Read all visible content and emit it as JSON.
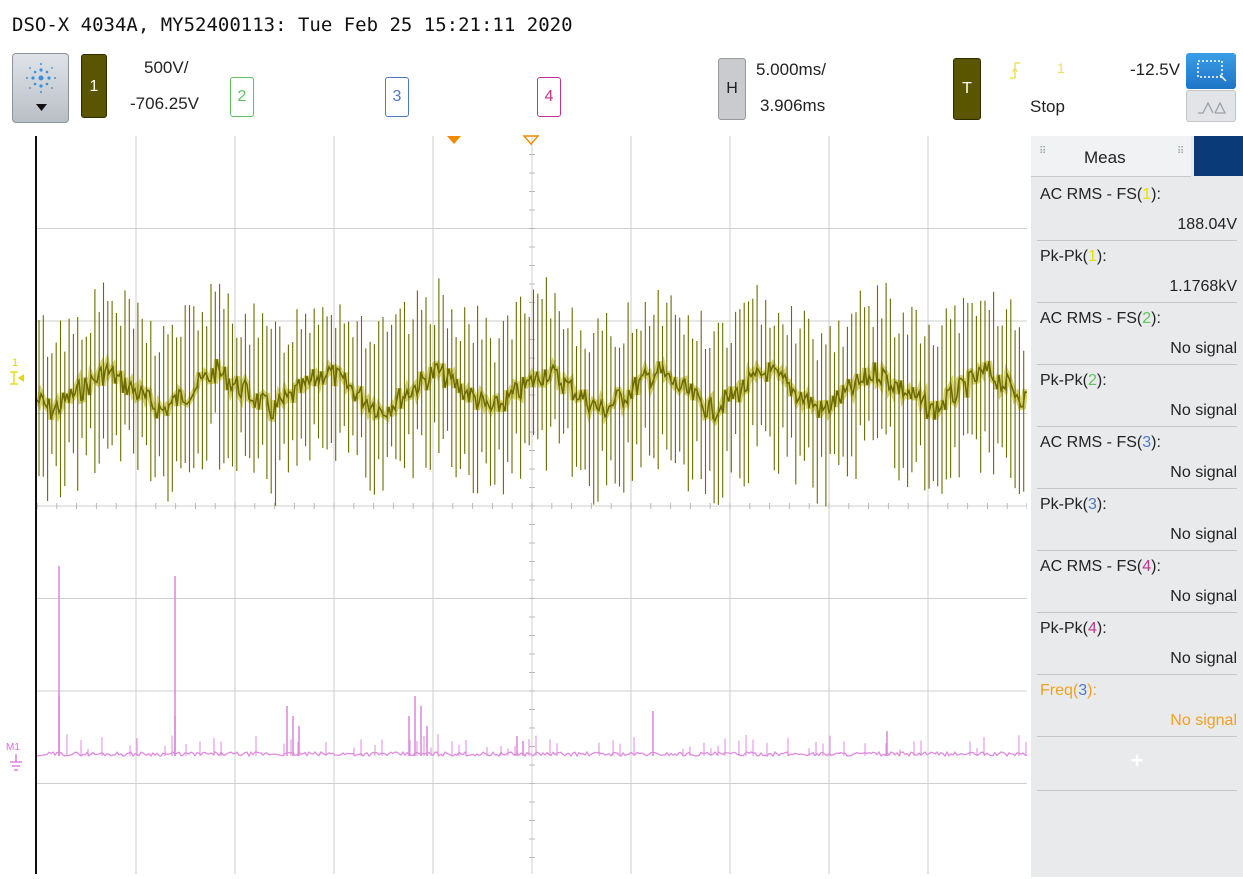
{
  "header": {
    "title": "DSO-X 4034A, MY52400113: Tue Feb 25 15:21:11 2020"
  },
  "toolbar": {
    "ch1": {
      "label": "1",
      "scale": "500V/",
      "offset": "-706.25V",
      "color": "#5a5500"
    },
    "ch2": {
      "label": "2",
      "color": "#5fc35f"
    },
    "ch3": {
      "label": "3",
      "color": "#4f78c8"
    },
    "ch4": {
      "label": "4",
      "color": "#c0328f"
    },
    "horizontal": {
      "label": "H",
      "scale": "5.000ms/",
      "delay": "3.906ms"
    },
    "trigger": {
      "label": "T",
      "source": "1",
      "level": "-12.5V",
      "mode": "Stop",
      "color": "#5a5500"
    }
  },
  "traces": {
    "ch1_color": "#6b6b00",
    "ch1_light": "#b8b000",
    "math_label": "M1",
    "math_color": "#e08ae0",
    "ch1_marker": "1"
  },
  "meas": {
    "title": "Meas",
    "items": [
      {
        "label": "AC RMS - FS(",
        "src": "1",
        "src_color": "#e8e000",
        "value": "188.04V",
        "highlight": false
      },
      {
        "label": "Pk-Pk(",
        "src": "1",
        "src_color": "#e8e000",
        "value": "1.1768kV",
        "highlight": false
      },
      {
        "label": "AC RMS - FS(",
        "src": "2",
        "src_color": "#5fc35f",
        "value": "No signal",
        "highlight": false
      },
      {
        "label": "Pk-Pk(",
        "src": "2",
        "src_color": "#5fc35f",
        "value": "No signal",
        "highlight": false
      },
      {
        "label": "AC RMS - FS(",
        "src": "3",
        "src_color": "#4f78c8",
        "value": "No signal",
        "highlight": false
      },
      {
        "label": "Pk-Pk(",
        "src": "3",
        "src_color": "#4f78c8",
        "value": "No signal",
        "highlight": false
      },
      {
        "label": "AC RMS - FS(",
        "src": "4",
        "src_color": "#c0328f",
        "value": "No signal",
        "highlight": false
      },
      {
        "label": "Pk-Pk(",
        "src": "4",
        "src_color": "#c0328f",
        "value": "No signal",
        "highlight": false
      },
      {
        "label": "Freq(",
        "src": "3",
        "src_color": "#4f78c8",
        "value": "No signal",
        "highlight": true
      }
    ],
    "add_label": "+",
    "highlight_color": "#f4a020"
  }
}
